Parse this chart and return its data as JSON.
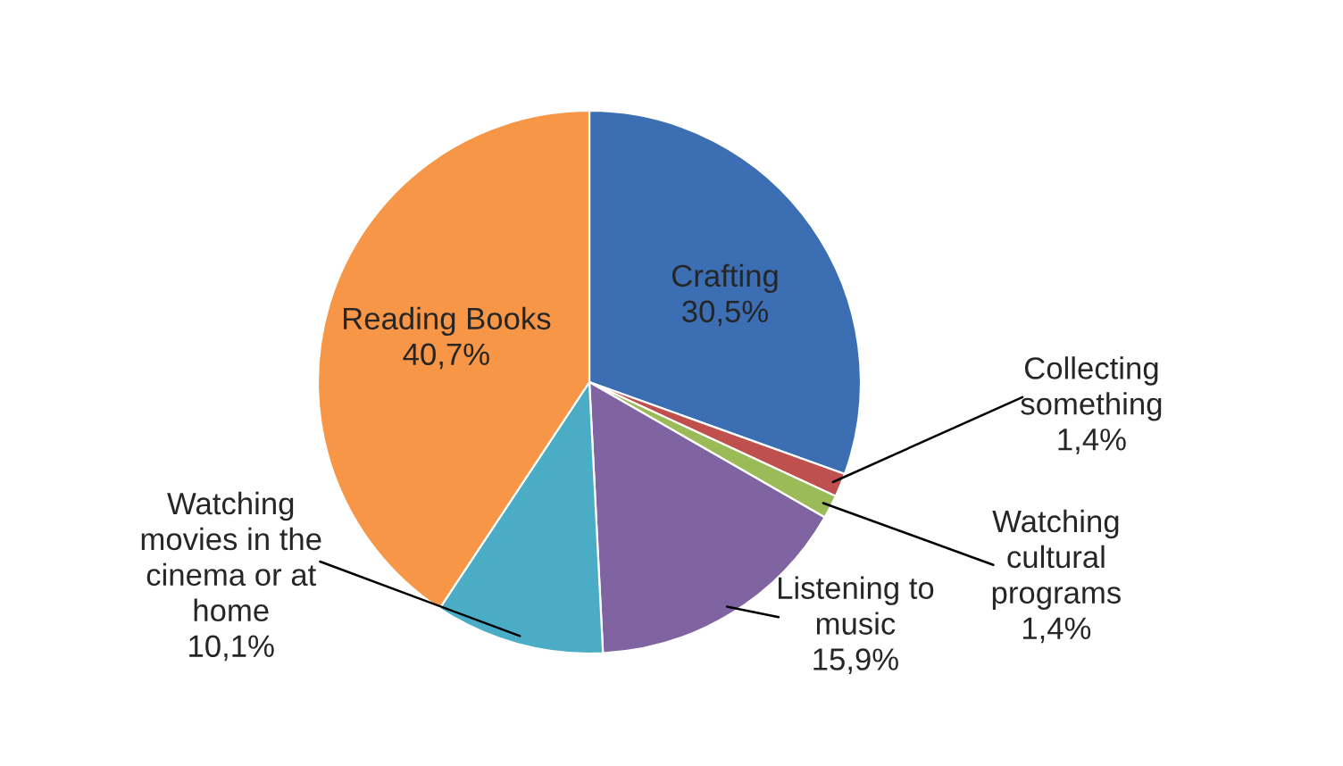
{
  "chart_data": {
    "type": "pie",
    "categories": [
      "Crafting",
      "Collecting something",
      "Watching cultural programs",
      "Listening to music",
      "Watching movies in the cinema or at home",
      "Reading Books"
    ],
    "values": [
      30.5,
      1.4,
      1.4,
      15.9,
      10.1,
      40.7
    ],
    "value_labels": [
      "30,5%",
      "1,4%",
      "1,4%",
      "15,9%",
      "10,1%",
      "40,7%"
    ],
    "colors": [
      "#3c6eb4",
      "#c0504d",
      "#9bbb59",
      "#8064a2",
      "#4bacc6",
      "#f79646"
    ]
  }
}
